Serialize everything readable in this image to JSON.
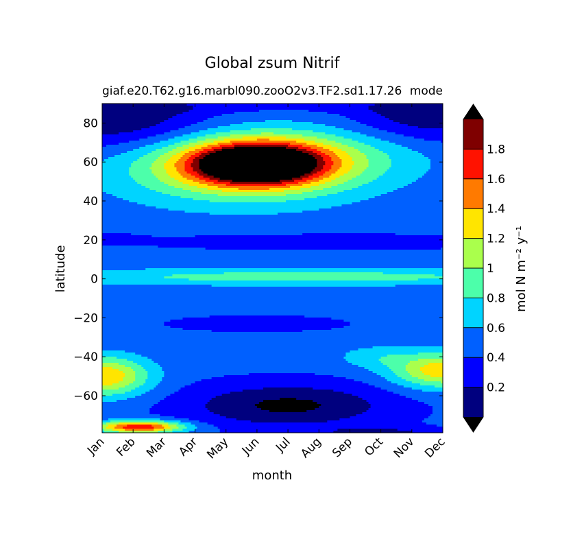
{
  "chart_data": {
    "type": "heatmap",
    "title": "Global zsum Nitrif",
    "subtitle_left": "giaf.e20.T62.g16.marbl090.zooO2v3.TF2.sd1.17.26",
    "subtitle_right": "mode",
    "xlabel": "month",
    "ylabel": "latitude",
    "colorbar_label": "mol N m⁻² y⁻¹",
    "x_ticks": [
      "Jan",
      "Feb",
      "Mar",
      "Apr",
      "May",
      "Jun",
      "Jul",
      "Aug",
      "Sep",
      "Oct",
      "Nov",
      "Dec"
    ],
    "y_ticks": [
      80,
      60,
      40,
      20,
      0,
      -20,
      -40,
      -60
    ],
    "ylim": [
      -79,
      90
    ],
    "colorbar_ticks": [
      "0.2",
      "0.4",
      "0.6",
      "0.8",
      "1",
      "1.2",
      "1.4",
      "1.6",
      "1.8"
    ],
    "levels": [
      0,
      0.2,
      0.4,
      0.6,
      0.8,
      1.0,
      1.2,
      1.4,
      1.6,
      1.8,
      2.0
    ],
    "extend": "both",
    "colors": {
      "under": "#000000",
      "bins": [
        "#00007f",
        "#0000ff",
        "#0060ff",
        "#00d4ff",
        "#4cffaa",
        "#aaff4c",
        "#ffe500",
        "#ff7a00",
        "#ff1200",
        "#7f0000"
      ],
      "over": "#000000"
    }
  }
}
